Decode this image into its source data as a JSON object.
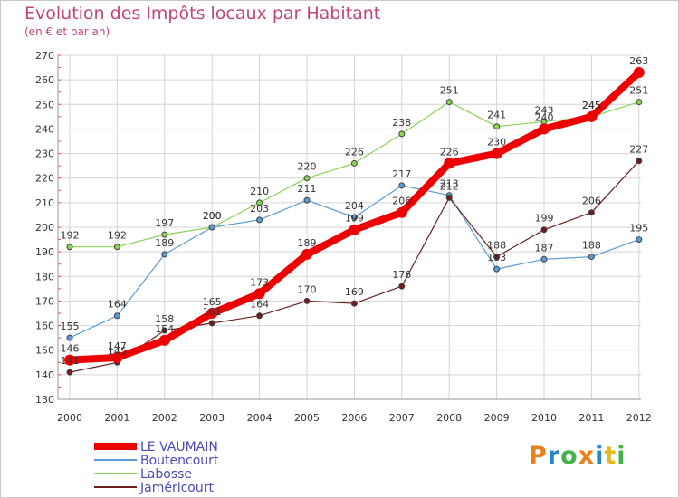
{
  "chart_data": {
    "type": "line",
    "title": "Evolution des Impôts locaux par Habitant",
    "subtitle": "(en € et par an)",
    "xlabel": "",
    "ylabel": "",
    "x": [
      2000,
      2001,
      2002,
      2003,
      2004,
      2005,
      2006,
      2007,
      2008,
      2009,
      2010,
      2011,
      2012
    ],
    "ylim": [
      130,
      270
    ],
    "yticks": [
      130,
      140,
      150,
      160,
      170,
      180,
      190,
      200,
      210,
      220,
      230,
      240,
      250,
      260,
      270
    ],
    "grid": true,
    "legend": "bottom-left",
    "series": [
      {
        "name": "LE VAUMAIN",
        "color": "#ee0000",
        "values": [
          146,
          147,
          154,
          165,
          173,
          189,
          199,
          206,
          226,
          230,
          240,
          245,
          263
        ]
      },
      {
        "name": "Boutencourt",
        "color": "#5b9bd5",
        "values": [
          155,
          164,
          189,
          200,
          203,
          211,
          204,
          217,
          213,
          183,
          187,
          188,
          195
        ]
      },
      {
        "name": "Labosse",
        "color": "#88d455",
        "values": [
          192,
          192,
          197,
          200,
          210,
          220,
          226,
          238,
          251,
          241,
          243,
          245,
          251
        ]
      },
      {
        "name": "Jaméricourt",
        "color": "#6b1f1f",
        "values": [
          141,
          145,
          158,
          161,
          164,
          170,
          169,
          176,
          212,
          188,
          199,
          206,
          227
        ]
      }
    ]
  },
  "logo": {
    "letters": [
      "P",
      "r",
      "o",
      "x",
      "i",
      "t",
      "i"
    ],
    "colors": [
      "#e8801a",
      "#2a86c8",
      "#46b04a",
      "#e8801a",
      "#2a86c8",
      "#e8b81a",
      "#46b04a"
    ]
  }
}
